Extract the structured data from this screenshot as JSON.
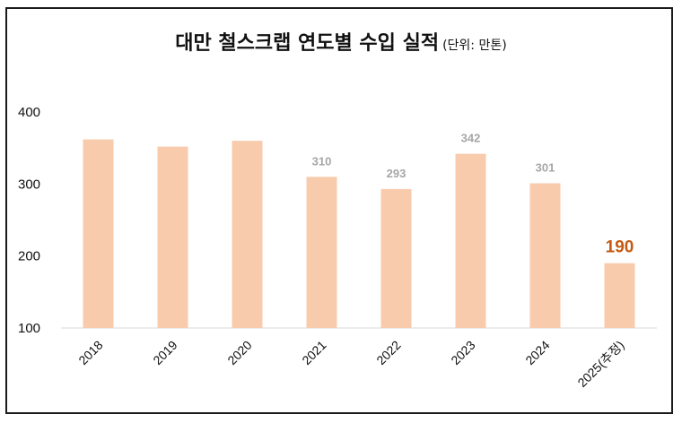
{
  "chart_data": {
    "type": "bar",
    "title": "대만 철스크랩 연도별 수입 실적",
    "subtitle": "(단위: 만톤)",
    "categories": [
      "2018",
      "2019",
      "2020",
      "2021",
      "2022",
      "2023",
      "2024",
      "2025(추정)"
    ],
    "values": [
      362,
      352,
      360,
      310,
      293,
      342,
      301,
      190
    ],
    "data_labels": [
      "",
      "",
      "",
      "310",
      "293",
      "342",
      "301",
      "190"
    ],
    "highlight_index": 7,
    "yticks": [
      "100",
      "200",
      "300",
      "400"
    ],
    "ylim": [
      100,
      400
    ],
    "grid": false,
    "legend": "none",
    "colors": {
      "bar": "#f8cbad",
      "label": "#a6a6a6",
      "highlight_label": "#c55a11",
      "axis": "#d9d9d9"
    }
  }
}
